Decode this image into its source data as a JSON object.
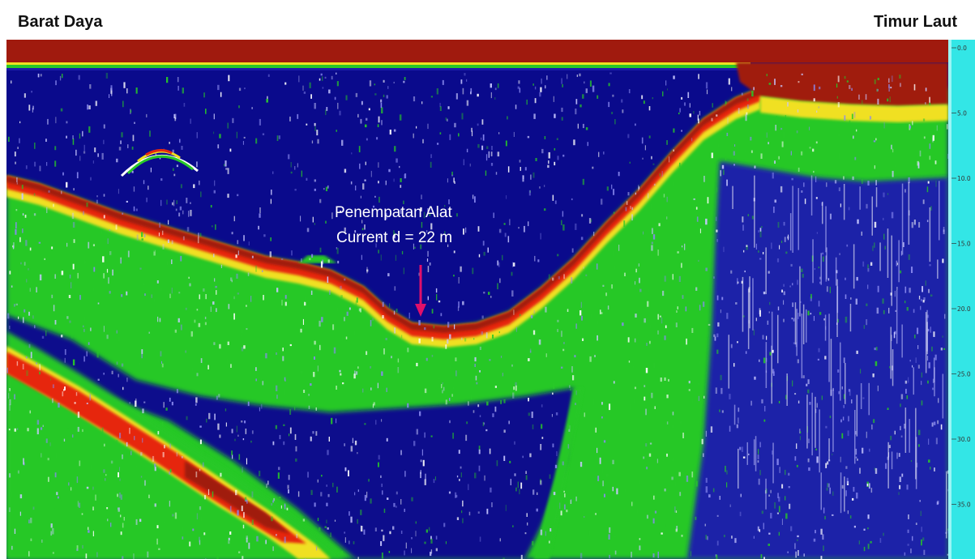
{
  "header": {
    "left_label": "Barat Daya",
    "right_label": "Timur Laut"
  },
  "annotation": {
    "line1": "Penempatan Alat",
    "line2": "Current d = 22 m"
  },
  "depth_scale": {
    "unit": "m",
    "ticks": [
      "0.0",
      "5.0",
      "10.0",
      "15.0",
      "20.0",
      "25.0",
      "30.0",
      "35.0"
    ]
  },
  "colors": {
    "water": "#0a0a8c",
    "strong_echo": "#a01a0e",
    "medium_echo": "#e62810",
    "weak_echo": "#f0e020",
    "faint_echo": "#28c828",
    "noise": "#c8c8ff",
    "scale_bar": "#33e6e6",
    "annotation_arrow": "#e0106a"
  }
}
